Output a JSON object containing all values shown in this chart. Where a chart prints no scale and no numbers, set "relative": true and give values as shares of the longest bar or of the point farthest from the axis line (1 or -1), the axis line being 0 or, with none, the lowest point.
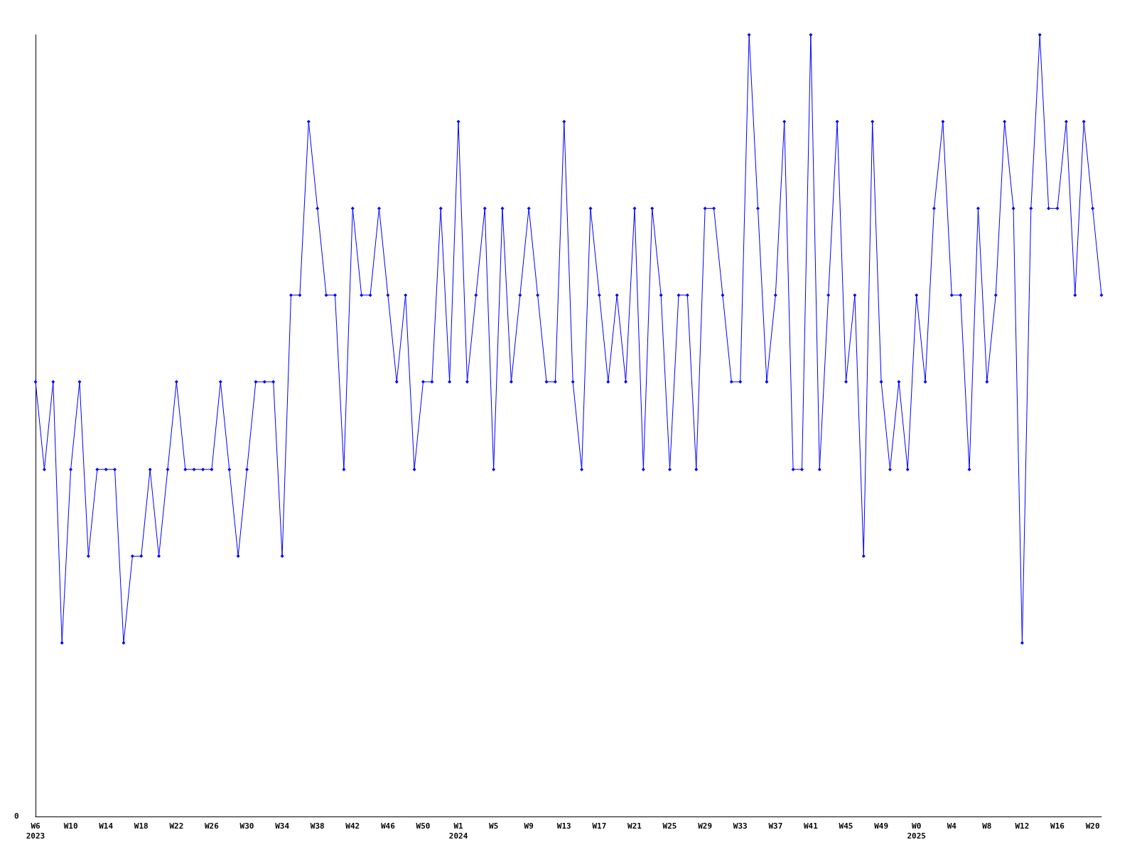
{
  "chart_data": {
    "type": "line",
    "relative": true,
    "annotations": [
      "0"
    ],
    "grid": false,
    "marker": "diamond",
    "line_style": "solid",
    "categories": [
      "W6\n2023",
      null,
      null,
      null,
      "W10",
      null,
      null,
      null,
      "W14",
      null,
      null,
      null,
      "W18",
      null,
      null,
      null,
      "W22",
      null,
      null,
      null,
      "W26",
      null,
      null,
      null,
      "W30",
      null,
      null,
      null,
      "W34",
      null,
      null,
      null,
      "W38",
      null,
      null,
      null,
      "W42",
      null,
      null,
      null,
      "W46",
      null,
      null,
      null,
      "W50",
      null,
      null,
      null,
      "W1\n2024",
      null,
      null,
      null,
      "W5",
      null,
      null,
      null,
      "W9",
      null,
      null,
      null,
      "W13",
      null,
      null,
      null,
      "W17",
      null,
      null,
      null,
      "W21",
      null,
      null,
      null,
      "W25",
      null,
      null,
      null,
      "W29",
      null,
      null,
      null,
      "W33",
      null,
      null,
      null,
      "W37",
      null,
      null,
      null,
      "W41",
      null,
      null,
      null,
      "W45",
      null,
      null,
      null,
      "W49",
      null,
      null,
      null,
      "W0\n2025",
      null,
      null,
      null,
      "W4",
      null,
      null,
      null,
      "W8",
      null,
      null,
      null,
      "W12",
      null,
      null,
      null,
      "W16",
      null,
      null,
      null,
      "W20",
      null
    ],
    "series": [
      {
        "color": "#0000ff",
        "values": [
          0.556,
          0.444,
          0.556,
          0.222,
          0.444,
          0.556,
          0.333,
          0.444,
          0.444,
          0.444,
          0.222,
          0.333,
          0.333,
          0.444,
          0.333,
          0.444,
          0.556,
          0.444,
          0.444,
          0.444,
          0.444,
          0.556,
          0.444,
          0.333,
          0.444,
          0.556,
          0.556,
          0.556,
          0.333,
          0.667,
          0.667,
          0.889,
          0.778,
          0.667,
          0.667,
          0.444,
          0.778,
          0.667,
          0.667,
          0.778,
          0.667,
          0.556,
          0.667,
          0.444,
          0.556,
          0.556,
          0.778,
          0.556,
          0.889,
          0.556,
          0.667,
          0.778,
          0.444,
          0.778,
          0.556,
          0.667,
          0.778,
          0.667,
          0.556,
          0.556,
          0.889,
          0.556,
          0.444,
          0.778,
          0.667,
          0.556,
          0.667,
          0.556,
          0.778,
          0.444,
          0.778,
          0.667,
          0.444,
          0.667,
          0.667,
          0.444,
          0.778,
          0.778,
          0.667,
          0.556,
          0.556,
          1,
          0.778,
          0.556,
          0.667,
          0.889,
          0.444,
          0.444,
          1,
          0.444,
          0.667,
          0.889,
          0.556,
          0.667,
          0.333,
          0.889,
          0.556,
          0.444,
          0.556,
          0.444,
          0.667,
          0.556,
          0.778,
          0.889,
          0.667,
          0.667,
          0.444,
          0.778,
          0.556,
          0.667,
          0.889,
          0.778,
          0.222,
          0.778,
          1,
          0.778,
          0.778,
          0.889,
          0.667,
          0.889,
          0.778,
          0.667
        ]
      }
    ]
  }
}
